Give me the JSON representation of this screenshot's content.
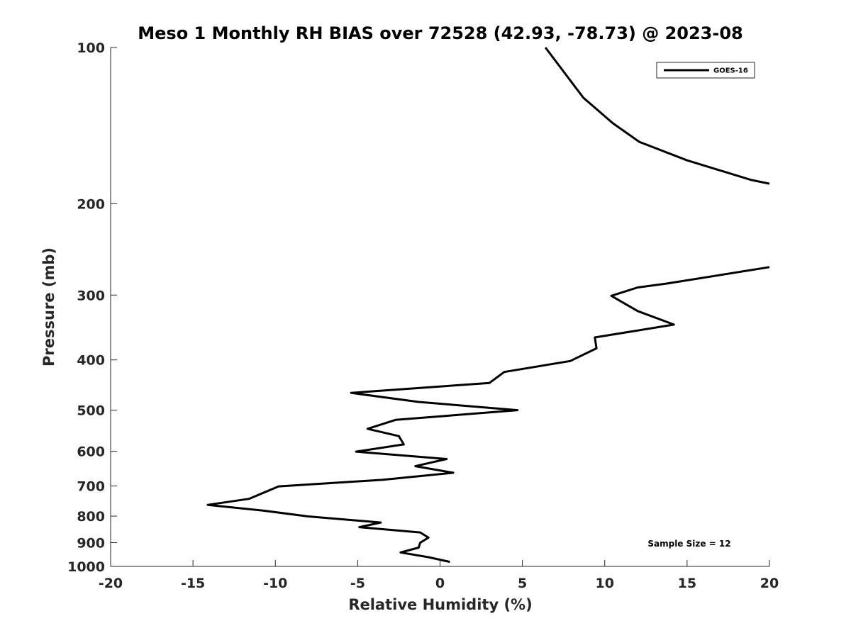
{
  "chart_data": {
    "type": "line",
    "title": "Meso 1 Monthly RH BIAS over 72528 (42.93, -78.73) @ 2023-08",
    "xlabel": "Relative Humidity (%)",
    "ylabel": "Pressure (mb)",
    "xlim": [
      -20,
      20
    ],
    "ylim": [
      100,
      1000
    ],
    "yscale": "log",
    "y_reversed": true,
    "grid": false,
    "legend_position": "top-right",
    "xticks": [
      -20,
      -15,
      -10,
      -5,
      0,
      5,
      10,
      15,
      20
    ],
    "xtick_labels": [
      "-20",
      "-15",
      "-10",
      "-5",
      "0",
      "5",
      "10",
      "15",
      "20"
    ],
    "yticks": [
      100,
      200,
      300,
      400,
      500,
      600,
      700,
      800,
      900,
      1000
    ],
    "ytick_labels": [
      "100",
      "200",
      "300",
      "400",
      "500",
      "600",
      "700",
      "800",
      "900",
      "1000"
    ],
    "annotation": "Sample Size = 12",
    "series": [
      {
        "name": "GOES-16",
        "color": "#000000",
        "segments": [
          [
            {
              "x": 6.4,
              "y": 100
            },
            {
              "x": 8.7,
              "y": 125
            },
            {
              "x": 10.5,
              "y": 140
            },
            {
              "x": 12.1,
              "y": 152
            },
            {
              "x": 15.0,
              "y": 165
            },
            {
              "x": 18.9,
              "y": 180
            },
            {
              "x": 20.0,
              "y": 183
            }
          ],
          [
            {
              "x": 20.0,
              "y": 265
            },
            {
              "x": 13.8,
              "y": 285
            },
            {
              "x": 12.0,
              "y": 290
            },
            {
              "x": 10.4,
              "y": 301
            },
            {
              "x": 12.0,
              "y": 322
            },
            {
              "x": 14.2,
              "y": 342
            },
            {
              "x": 9.4,
              "y": 362
            },
            {
              "x": 9.5,
              "y": 380
            },
            {
              "x": 7.9,
              "y": 402
            },
            {
              "x": 3.9,
              "y": 422
            },
            {
              "x": 3.0,
              "y": 443
            },
            {
              "x": -5.4,
              "y": 463
            },
            {
              "x": -1.3,
              "y": 482
            },
            {
              "x": 4.7,
              "y": 500
            },
            {
              "x": -2.7,
              "y": 522
            },
            {
              "x": -4.4,
              "y": 543
            },
            {
              "x": -2.5,
              "y": 561
            },
            {
              "x": -2.2,
              "y": 582
            },
            {
              "x": -5.1,
              "y": 601
            },
            {
              "x": 0.4,
              "y": 621
            },
            {
              "x": -1.5,
              "y": 641
            },
            {
              "x": 0.8,
              "y": 660
            },
            {
              "x": -3.5,
              "y": 681
            },
            {
              "x": -9.8,
              "y": 701
            },
            {
              "x": -11.6,
              "y": 741
            },
            {
              "x": -14.1,
              "y": 761
            },
            {
              "x": -10.7,
              "y": 781
            },
            {
              "x": -8.0,
              "y": 801
            },
            {
              "x": -3.6,
              "y": 823
            },
            {
              "x": -4.9,
              "y": 840
            },
            {
              "x": -1.2,
              "y": 860
            },
            {
              "x": -0.7,
              "y": 880
            },
            {
              "x": -1.2,
              "y": 900
            },
            {
              "x": -1.3,
              "y": 920
            },
            {
              "x": -2.4,
              "y": 940
            },
            {
              "x": -0.7,
              "y": 960
            },
            {
              "x": 0.6,
              "y": 980
            }
          ]
        ]
      }
    ]
  }
}
